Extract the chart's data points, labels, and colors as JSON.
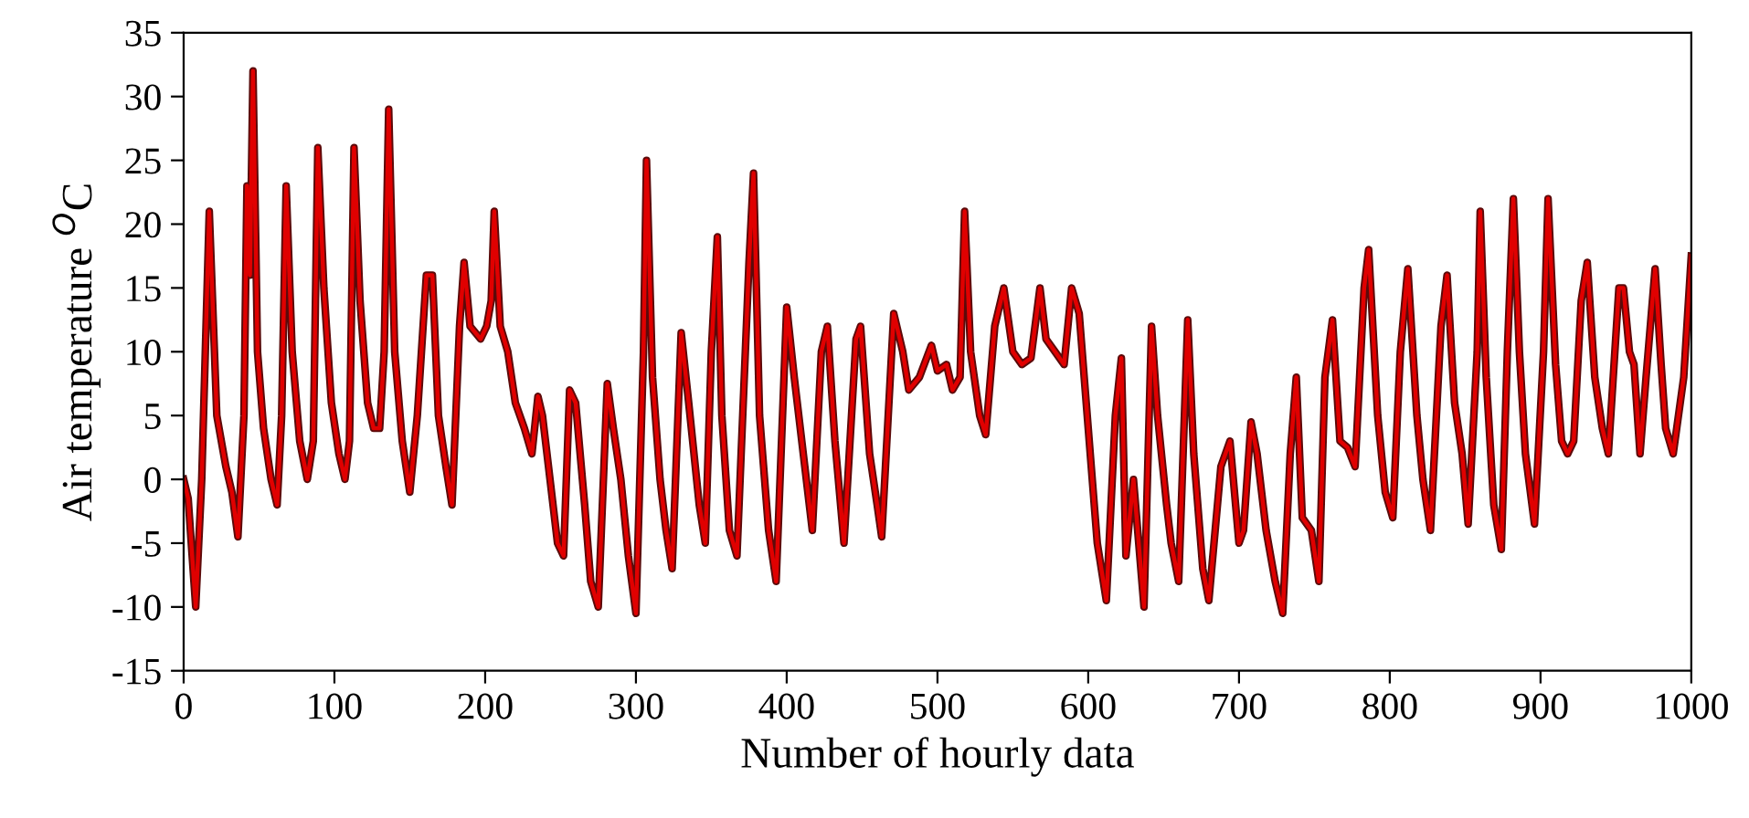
{
  "chart_data": {
    "type": "line",
    "xlabel": "Number of hourly data",
    "ylabel": "Air temperature $^{O}$C",
    "xlim": [
      0,
      1000
    ],
    "xticks": [
      0,
      100,
      200,
      300,
      400,
      500,
      600,
      700,
      800,
      900,
      1000
    ],
    "ylim": [
      -15,
      35
    ],
    "yticks": [
      -15,
      -10,
      -5,
      0,
      5,
      10,
      15,
      20,
      25,
      30,
      35
    ],
    "grid": false,
    "legend": false,
    "marker": "none",
    "line_style": "solid",
    "x": [
      0,
      3,
      8,
      12,
      17,
      22,
      28,
      32,
      36,
      40,
      42,
      44,
      46,
      49,
      53,
      58,
      62,
      65,
      68,
      72,
      77,
      82,
      86,
      89,
      93,
      98,
      103,
      107,
      110,
      113,
      117,
      122,
      126,
      130,
      133,
      136,
      140,
      145,
      150,
      155,
      161,
      165,
      169,
      174,
      178,
      183,
      186,
      190,
      197,
      201,
      204,
      206,
      210,
      215,
      220,
      226,
      231,
      235,
      238,
      243,
      248,
      252,
      256,
      260,
      266,
      270,
      275,
      281,
      285,
      290,
      295,
      300,
      305,
      307,
      311,
      316,
      320,
      324,
      330,
      335,
      342,
      346,
      350,
      354,
      357,
      362,
      367,
      375,
      378,
      382,
      388,
      393,
      400,
      405,
      412,
      417,
      423,
      427,
      432,
      438,
      446,
      449,
      455,
      460,
      463,
      471,
      477,
      481,
      488,
      496,
      500,
      506,
      510,
      515,
      518,
      522,
      528,
      532,
      538,
      544,
      550,
      556,
      562,
      568,
      572,
      578,
      584,
      589,
      594,
      600,
      606,
      612,
      618,
      622,
      625,
      630,
      637,
      642,
      646,
      652,
      655,
      660,
      666,
      670,
      676,
      680,
      688,
      694,
      700,
      703,
      708,
      712,
      718,
      724,
      729,
      734,
      738,
      742,
      748,
      753,
      757,
      762,
      767,
      772,
      777,
      783,
      786,
      792,
      797,
      802,
      807,
      812,
      818,
      822,
      827,
      834,
      838,
      843,
      848,
      852,
      858,
      860,
      864,
      869,
      874,
      878,
      882,
      886,
      890,
      896,
      902,
      905,
      910,
      914,
      918,
      922,
      927,
      931,
      936,
      941,
      945,
      952,
      955,
      959,
      962,
      966,
      970,
      976,
      980,
      983,
      988,
      995,
      1000
    ],
    "series": [
      {
        "color": "#5c0a0a",
        "values": [
          0,
          -1.5,
          -10,
          0,
          21,
          5,
          1,
          -1,
          -4.5,
          5,
          23,
          16,
          32,
          10,
          4,
          0,
          -2,
          5,
          23,
          10,
          3,
          0,
          3,
          26,
          15,
          6,
          2,
          0,
          3,
          26,
          14,
          6,
          4,
          4,
          10,
          29,
          10,
          3,
          -1,
          5,
          16,
          16,
          5,
          1,
          -2,
          12,
          17,
          12,
          11,
          12,
          14,
          21,
          12,
          10,
          6,
          4,
          2,
          6.5,
          5,
          0,
          -5,
          -6,
          7,
          6,
          -2,
          -8,
          -10,
          7.5,
          4,
          0,
          -6,
          -10.5,
          10,
          25,
          8,
          0,
          -4,
          -7,
          11.5,
          6,
          -2,
          -5,
          10,
          19,
          5,
          -4,
          -6,
          17,
          24,
          5,
          -4,
          -8,
          13.5,
          8,
          1,
          -4,
          10,
          12,
          3,
          -5,
          11,
          12,
          2,
          -2,
          -4.5,
          13,
          10,
          7,
          8,
          10.5,
          8.5,
          9,
          7,
          8,
          21,
          10,
          5,
          3.5,
          12,
          15,
          10,
          9,
          9.5,
          15,
          11,
          10,
          9,
          15,
          13,
          4,
          -5,
          -9.5,
          5,
          9.5,
          -6,
          0,
          -10,
          12,
          5,
          -2,
          -5,
          -8,
          12.5,
          2,
          -7,
          -9.5,
          1,
          3,
          -5,
          -4,
          4.5,
          2,
          -4,
          -8,
          -10.5,
          2,
          8,
          -3,
          -4,
          -8,
          8,
          12.5,
          3,
          2.5,
          1,
          15,
          18,
          5,
          -1,
          -3,
          10,
          16.5,
          5,
          0,
          -4,
          12,
          16,
          6,
          2,
          -3.5,
          10,
          21,
          8,
          -2,
          -5.5,
          10,
          22,
          10,
          2,
          -3.5,
          10,
          22,
          9,
          3,
          2,
          3,
          14,
          17,
          8,
          4,
          2,
          15,
          15,
          10,
          9,
          2,
          8,
          16.5,
          9,
          4,
          2,
          8,
          17.5
        ]
      },
      {
        "color": "#e00000",
        "values": [
          0,
          -1.5,
          -10,
          0,
          21,
          5,
          1,
          -1,
          -4.5,
          5,
          23,
          16,
          32,
          10,
          4,
          0,
          -2,
          5,
          23,
          10,
          3,
          0,
          3,
          26,
          15,
          6,
          2,
          0,
          3,
          26,
          14,
          6,
          4,
          4,
          10,
          29,
          10,
          3,
          -1,
          5,
          16,
          16,
          5,
          1,
          -2,
          12,
          17,
          12,
          11,
          12,
          14,
          21,
          12,
          10,
          6,
          4,
          2,
          6.5,
          5,
          0,
          -5,
          -6,
          7,
          6,
          -2,
          -8,
          -10,
          7.5,
          4,
          0,
          -6,
          -10.5,
          10,
          25,
          8,
          0,
          -4,
          -7,
          11.5,
          6,
          -2,
          -5,
          10,
          19,
          5,
          -4,
          -6,
          17,
          24,
          5,
          -4,
          -8,
          13.5,
          8,
          1,
          -4,
          10,
          12,
          3,
          -5,
          11,
          12,
          2,
          -2,
          -4.5,
          13,
          10,
          7,
          8,
          10.5,
          8.5,
          9,
          7,
          8,
          21,
          10,
          5,
          3.5,
          12,
          15,
          10,
          9,
          9.5,
          15,
          11,
          10,
          9,
          15,
          13,
          4,
          -5,
          -9.5,
          5,
          9.5,
          -6,
          0,
          -10,
          12,
          5,
          -2,
          -5,
          -8,
          12.5,
          2,
          -7,
          -9.5,
          1,
          3,
          -5,
          -4,
          4.5,
          2,
          -4,
          -8,
          -10.5,
          2,
          8,
          -3,
          -4,
          -8,
          8,
          12.5,
          3,
          2.5,
          1,
          15,
          18,
          5,
          -1,
          -3,
          10,
          16.5,
          5,
          0,
          -4,
          12,
          16,
          6,
          2,
          -3.5,
          10,
          21,
          8,
          -2,
          -5.5,
          10,
          22,
          10,
          2,
          -3.5,
          10,
          22,
          9,
          3,
          2,
          3,
          14,
          17,
          8,
          4,
          2,
          15,
          15,
          10,
          9,
          2,
          8,
          16.5,
          9,
          4,
          2,
          8,
          17.5
        ]
      }
    ]
  }
}
